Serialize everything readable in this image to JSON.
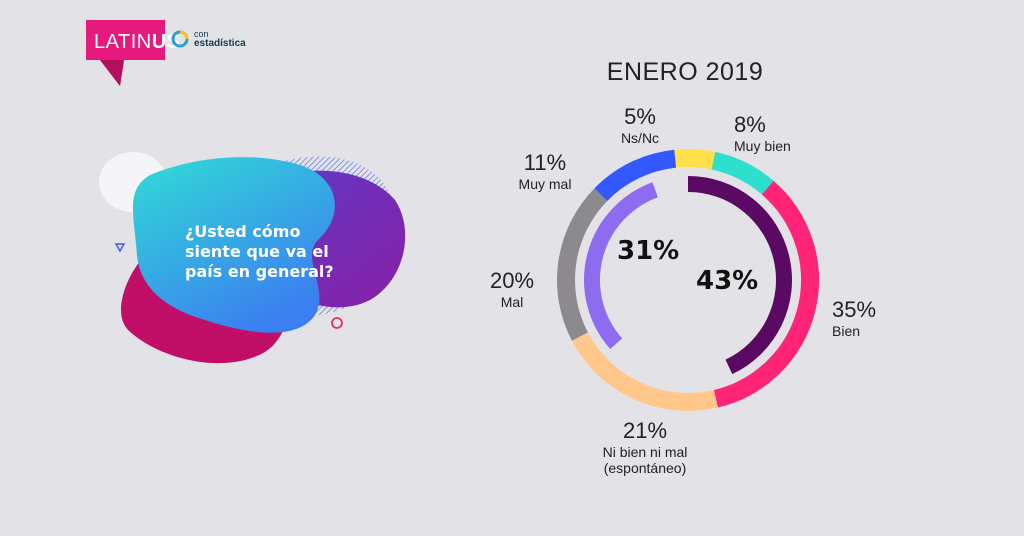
{
  "brand": {
    "name_light": "LATIN",
    "name_bold": "US",
    "partner_small": "con",
    "partner_bold": "estadística"
  },
  "question": "¿Usted cómo siente que va el país en general?",
  "colors": {
    "pink": "#ff2478",
    "yellow": "#ffe04a",
    "teal": "#2de0cd",
    "blue": "#3358ff",
    "gray": "#8c8a8c",
    "peach": "#ffc88a",
    "dark_purple": "#5a0a63",
    "lavender": "#8e6cf0",
    "flag": "#e6197e"
  },
  "chart_data": {
    "type": "pie",
    "title": "ENERO 2019",
    "outer_ring": [
      {
        "label": "Muy bien",
        "value": 8,
        "pct": "8%",
        "color": "#2de0cd"
      },
      {
        "label": "Bien",
        "value": 35,
        "pct": "35%",
        "color": "#ff2478"
      },
      {
        "label": "Ni bien ni mal (espontáneo)",
        "value": 21,
        "pct": "21%",
        "color": "#ffc88a"
      },
      {
        "label": "Mal",
        "value": 20,
        "pct": "20%",
        "color": "#8c8a8c"
      },
      {
        "label": "Muy mal",
        "value": 11,
        "pct": "11%",
        "color": "#3358ff"
      },
      {
        "label": "Ns/Nc",
        "value": 5,
        "pct": "5%",
        "color": "#ffe04a"
      }
    ],
    "inner_ring": [
      {
        "value": 43,
        "pct": "43%",
        "color": "#5a0a63"
      },
      {
        "value": 31,
        "pct": "31%",
        "color": "#8e6cf0"
      }
    ],
    "labels": {
      "muy_bien": {
        "pct": "8%",
        "name": "Muy bien"
      },
      "bien": {
        "pct": "35%",
        "name": "Bien"
      },
      "ni_bien": {
        "pct": "21%",
        "name1": "Ni bien ni mal",
        "name2": "(espontáneo)"
      },
      "mal": {
        "pct": "20%",
        "name": "Mal"
      },
      "muy_mal": {
        "pct": "11%",
        "name": "Muy mal"
      },
      "nsnc": {
        "pct": "5%",
        "name": "Ns/Nc"
      },
      "inner_right": "43%",
      "inner_left": "31%"
    }
  }
}
